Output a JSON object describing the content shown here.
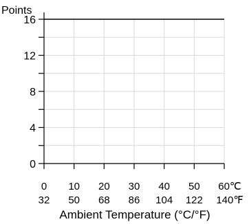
{
  "chart_data": {
    "type": "line",
    "title": "",
    "ylabel": "Points",
    "xlabel": "Ambient Temperature (°C/°F)",
    "ylim": [
      0,
      16
    ],
    "y_ticks_major": [
      0,
      4,
      8,
      12,
      16
    ],
    "y_ticks_minor": [
      2,
      6,
      10,
      14
    ],
    "xlim": [
      0,
      60
    ],
    "x_ticks_celsius": [
      "0",
      "10",
      "20",
      "30",
      "40",
      "50",
      "60℃"
    ],
    "x_ticks_fahrenheit": [
      "32",
      "50",
      "68",
      "86",
      "104",
      "122",
      "140℉"
    ],
    "grid": true,
    "series": [
      {
        "x": [
          0,
          60
        ],
        "y": [
          16,
          16
        ],
        "color": "#000000"
      }
    ]
  }
}
